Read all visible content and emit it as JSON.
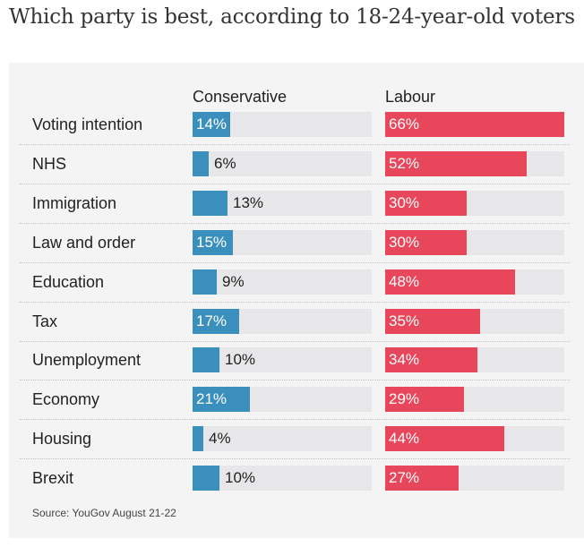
{
  "chart_data": {
    "type": "bar",
    "title": "Which party is best, according to 18-24-year-old voters",
    "source": "Source: YouGov August 21-22",
    "xlim": [
      0,
      66
    ],
    "categories": [
      "Voting intention",
      "NHS",
      "Immigration",
      "Law and order",
      "Education",
      "Tax",
      "Unemployment",
      "Economy",
      "Housing",
      "Brexit"
    ],
    "series": [
      {
        "name": "Conservative",
        "color": "#3a8fbc",
        "values": [
          14,
          6,
          13,
          15,
          9,
          17,
          10,
          21,
          4,
          10
        ]
      },
      {
        "name": "Labour",
        "color": "#e8465a",
        "values": [
          66,
          52,
          30,
          30,
          48,
          35,
          34,
          29,
          44,
          27
        ]
      }
    ]
  }
}
